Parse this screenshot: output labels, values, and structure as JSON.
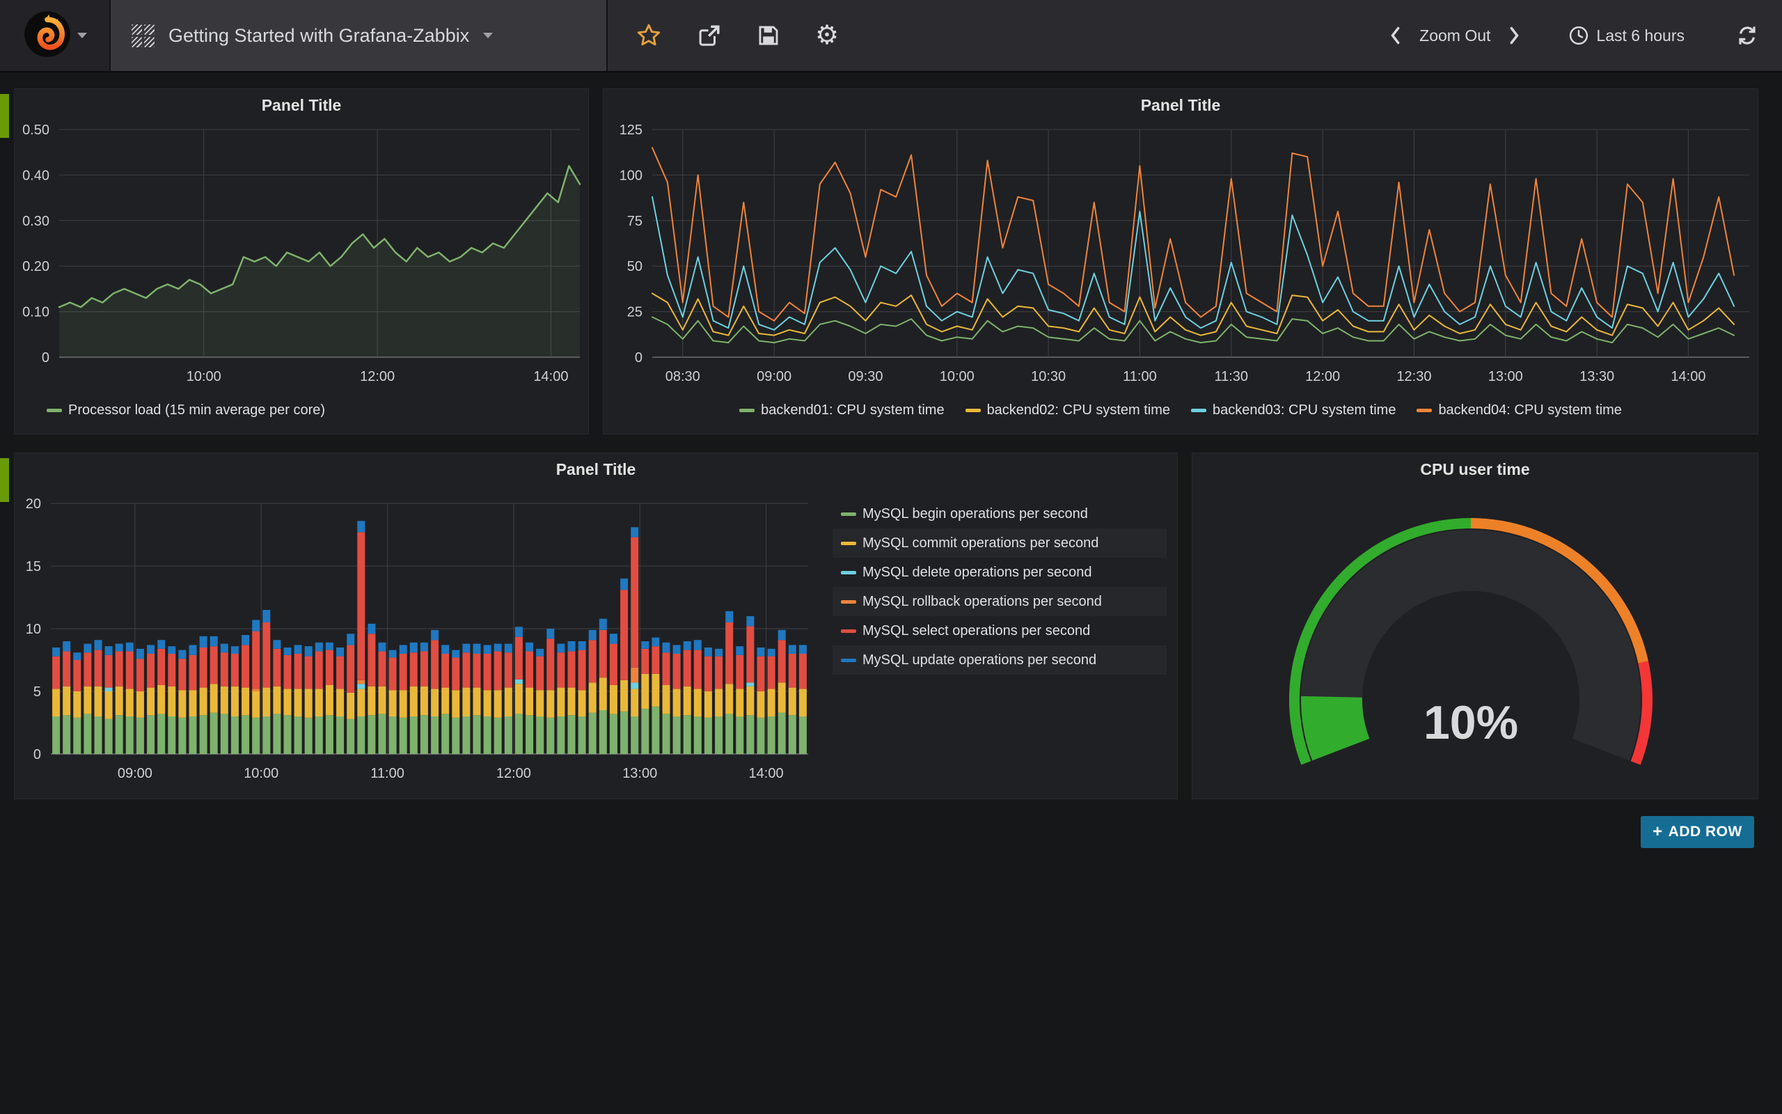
{
  "navbar": {
    "dashboard_title": "Getting Started with Grafana-Zabbix",
    "zoom_out_label": "Zoom Out",
    "time_range_label": "Last 6 hours"
  },
  "add_row": {
    "icon": "+",
    "label": "ADD ROW"
  },
  "colors": {
    "panel_bg": "#1f2023",
    "page_bg": "#161719",
    "navbar_bg": "#2b2b2f",
    "grid": "#404146",
    "axis": "#5a5b60",
    "tick_text": "#d0d0d2",
    "row_indicator": "#6a9b06",
    "add_row_bg": "#166d94",
    "star": "#e7a13d"
  },
  "chart_data": [
    {
      "type": "line",
      "title": "Panel Title",
      "x_range": [
        500,
        860
      ],
      "x_start": 500,
      "x_step": 7.5,
      "x_ticks": [
        {
          "v": 600,
          "label": "10:00"
        },
        {
          "v": 720,
          "label": "12:00"
        },
        {
          "v": 840,
          "label": "14:00"
        }
      ],
      "y_range": [
        0,
        0.5
      ],
      "y_ticks": [
        {
          "v": 0,
          "label": "0"
        },
        {
          "v": 0.1,
          "label": "0.10"
        },
        {
          "v": 0.2,
          "label": "0.20"
        },
        {
          "v": 0.3,
          "label": "0.30"
        },
        {
          "v": 0.4,
          "label": "0.40"
        },
        {
          "v": 0.5,
          "label": "0.50"
        }
      ],
      "legend_position": "bottom-left",
      "series": [
        {
          "name": "Processor load (15 min average per core)",
          "color": "#7EB26D",
          "fill": true,
          "width": 2.5,
          "values": [
            0.11,
            0.12,
            0.11,
            0.13,
            0.12,
            0.14,
            0.15,
            0.14,
            0.13,
            0.15,
            0.16,
            0.15,
            0.17,
            0.16,
            0.14,
            0.15,
            0.16,
            0.22,
            0.21,
            0.22,
            0.2,
            0.23,
            0.22,
            0.21,
            0.23,
            0.2,
            0.22,
            0.25,
            0.27,
            0.24,
            0.26,
            0.23,
            0.21,
            0.24,
            0.22,
            0.23,
            0.21,
            0.22,
            0.24,
            0.23,
            0.25,
            0.24,
            0.27,
            0.3,
            0.33,
            0.36,
            0.34,
            0.42,
            0.38
          ]
        }
      ]
    },
    {
      "type": "line",
      "title": "Panel Title",
      "x_range": [
        500,
        860
      ],
      "x_start": 500,
      "x_step": 5,
      "x_ticks": [
        {
          "v": 510,
          "label": "08:30"
        },
        {
          "v": 540,
          "label": "09:00"
        },
        {
          "v": 570,
          "label": "09:30"
        },
        {
          "v": 600,
          "label": "10:00"
        },
        {
          "v": 630,
          "label": "10:30"
        },
        {
          "v": 660,
          "label": "11:00"
        },
        {
          "v": 690,
          "label": "11:30"
        },
        {
          "v": 720,
          "label": "12:00"
        },
        {
          "v": 750,
          "label": "12:30"
        },
        {
          "v": 780,
          "label": "13:00"
        },
        {
          "v": 810,
          "label": "13:30"
        },
        {
          "v": 840,
          "label": "14:00"
        }
      ],
      "y_range": [
        0,
        125
      ],
      "y_ticks": [
        {
          "v": 0,
          "label": "0"
        },
        {
          "v": 25,
          "label": "25"
        },
        {
          "v": 50,
          "label": "50"
        },
        {
          "v": 75,
          "label": "75"
        },
        {
          "v": 100,
          "label": "100"
        },
        {
          "v": 125,
          "label": "125"
        }
      ],
      "legend_position": "bottom-center",
      "series": [
        {
          "name": "backend01: CPU system time",
          "color": "#7EB26D",
          "width": 2,
          "values": [
            22,
            18,
            10,
            20,
            9,
            8,
            17,
            9,
            8,
            10,
            9,
            18,
            20,
            17,
            13,
            18,
            17,
            21,
            12,
            9,
            11,
            10,
            20,
            14,
            17,
            16,
            11,
            10,
            9,
            16,
            10,
            9,
            20,
            9,
            14,
            10,
            8,
            9,
            18,
            11,
            10,
            9,
            21,
            20,
            13,
            16,
            11,
            9,
            9,
            18,
            10,
            14,
            11,
            9,
            10,
            18,
            12,
            10,
            18,
            11,
            9,
            14,
            10,
            8,
            18,
            16,
            11,
            18,
            10,
            13,
            16,
            12
          ]
        },
        {
          "name": "backend02: CPU system time",
          "color": "#EAB839",
          "width": 2,
          "values": [
            35,
            30,
            15,
            32,
            14,
            12,
            28,
            13,
            12,
            15,
            13,
            30,
            33,
            28,
            20,
            30,
            28,
            34,
            18,
            14,
            17,
            15,
            32,
            22,
            28,
            27,
            17,
            16,
            14,
            27,
            15,
            13,
            33,
            14,
            22,
            15,
            12,
            14,
            30,
            17,
            15,
            13,
            34,
            33,
            20,
            26,
            17,
            14,
            14,
            29,
            15,
            23,
            17,
            13,
            15,
            29,
            18,
            15,
            30,
            17,
            14,
            22,
            15,
            12,
            29,
            27,
            17,
            30,
            15,
            20,
            27,
            18
          ]
        },
        {
          "name": "backend03: CPU system time",
          "color": "#6ED0E0",
          "width": 2,
          "values": [
            88,
            45,
            22,
            55,
            20,
            16,
            50,
            18,
            15,
            22,
            18,
            52,
            60,
            48,
            30,
            50,
            46,
            58,
            28,
            20,
            25,
            22,
            55,
            35,
            48,
            46,
            26,
            24,
            20,
            46,
            22,
            18,
            80,
            20,
            38,
            22,
            16,
            20,
            52,
            25,
            22,
            18,
            78,
            56,
            30,
            44,
            25,
            20,
            20,
            50,
            22,
            40,
            25,
            18,
            22,
            50,
            28,
            22,
            52,
            25,
            20,
            38,
            22,
            16,
            50,
            46,
            25,
            52,
            22,
            32,
            46,
            28
          ]
        },
        {
          "name": "backend04: CPU system time",
          "color": "#EF843C",
          "width": 2,
          "values": [
            115,
            96,
            30,
            100,
            28,
            22,
            85,
            25,
            20,
            30,
            24,
            95,
            107,
            90,
            55,
            92,
            88,
            111,
            45,
            28,
            35,
            30,
            108,
            60,
            88,
            86,
            40,
            35,
            28,
            85,
            30,
            25,
            105,
            27,
            65,
            30,
            22,
            28,
            98,
            35,
            30,
            25,
            112,
            110,
            50,
            80,
            35,
            28,
            28,
            96,
            30,
            70,
            35,
            25,
            30,
            95,
            45,
            30,
            98,
            35,
            28,
            65,
            30,
            22,
            95,
            85,
            35,
            98,
            30,
            55,
            88,
            45
          ]
        }
      ]
    },
    {
      "type": "bar-stacked",
      "title": "Panel Title",
      "x_range": [
        500,
        860
      ],
      "x_start": 502.5,
      "x_step": 5,
      "x_ticks": [
        {
          "v": 540,
          "label": "09:00"
        },
        {
          "v": 600,
          "label": "10:00"
        },
        {
          "v": 660,
          "label": "11:00"
        },
        {
          "v": 720,
          "label": "12:00"
        },
        {
          "v": 780,
          "label": "13:00"
        },
        {
          "v": 840,
          "label": "14:00"
        }
      ],
      "y_range": [
        0,
        20
      ],
      "y_ticks": [
        {
          "v": 0,
          "label": "0"
        },
        {
          "v": 5,
          "label": "5"
        },
        {
          "v": 10,
          "label": "10"
        },
        {
          "v": 15,
          "label": "15"
        },
        {
          "v": 20,
          "label": "20"
        }
      ],
      "legend_position": "right-column",
      "series": [
        {
          "name": "MySQL begin operations per second",
          "color": "#7EB26D",
          "values": [
            3.0,
            3.1,
            2.9,
            3.2,
            3.0,
            2.8,
            3.1,
            3.0,
            2.9,
            3.1,
            3.2,
            3.0,
            2.9,
            3.0,
            3.1,
            3.3,
            3.2,
            3.0,
            3.1,
            2.9,
            3.0,
            3.2,
            3.1,
            3.0,
            2.9,
            3.0,
            3.1,
            3.0,
            2.8,
            3.0,
            3.1,
            3.2,
            3.0,
            2.9,
            3.0,
            3.1,
            3.0,
            3.2,
            2.9,
            3.0,
            3.1,
            3.0,
            2.9,
            3.0,
            3.2,
            3.1,
            3.0,
            2.9,
            3.0,
            3.1,
            3.0,
            3.3,
            3.5,
            3.2,
            3.4,
            3.0,
            3.6,
            3.8,
            3.2,
            3.0,
            3.1,
            3.0,
            2.9,
            3.0,
            3.2,
            3.0,
            3.1,
            2.9,
            3.0,
            3.3,
            3.1,
            3.0
          ]
        },
        {
          "name": "MySQL commit operations per second",
          "color": "#EAB839",
          "values": [
            2.2,
            2.3,
            2.1,
            2.2,
            2.4,
            2.2,
            2.3,
            2.2,
            2.1,
            2.2,
            2.3,
            2.4,
            2.2,
            2.1,
            2.2,
            2.3,
            2.2,
            2.4,
            2.2,
            2.1,
            2.3,
            2.2,
            2.1,
            2.2,
            2.3,
            2.2,
            2.4,
            2.2,
            2.1,
            2.2,
            2.3,
            2.2,
            2.1,
            2.2,
            2.4,
            2.3,
            2.2,
            2.1,
            2.2,
            2.3,
            2.2,
            2.1,
            2.2,
            2.3,
            2.4,
            2.2,
            2.1,
            2.2,
            2.3,
            2.2,
            2.1,
            2.4,
            2.6,
            2.3,
            2.5,
            2.2,
            2.8,
            2.6,
            2.3,
            2.2,
            2.3,
            2.2,
            2.1,
            2.2,
            2.4,
            2.2,
            2.3,
            2.1,
            2.2,
            2.4,
            2.2,
            2.2
          ]
        },
        {
          "name": "MySQL delete operations per second",
          "color": "#6ED0E0",
          "values": [
            0,
            0,
            0,
            0,
            0,
            0.3,
            0,
            0,
            0,
            0,
            0,
            0,
            0,
            0,
            0,
            0,
            0,
            0,
            0,
            0,
            0,
            0,
            0,
            0,
            0,
            0,
            0,
            0,
            0,
            0.4,
            0,
            0,
            0,
            0,
            0,
            0,
            0,
            0,
            0,
            0,
            0,
            0,
            0,
            0,
            0.35,
            0,
            0,
            0,
            0,
            0,
            0,
            0,
            0,
            0,
            0,
            0.5,
            0,
            0,
            0,
            0,
            0,
            0,
            0,
            0,
            0,
            0,
            0.3,
            0,
            0,
            0,
            0,
            0
          ]
        },
        {
          "name": "MySQL rollback operations per second",
          "color": "#EF843C",
          "values": [
            0,
            0,
            0,
            0,
            0,
            0,
            0,
            0,
            0,
            0,
            0,
            0,
            0,
            0,
            0,
            0,
            0,
            0,
            0,
            0.2,
            0,
            0,
            0,
            0,
            0,
            0,
            0,
            0,
            0,
            0.3,
            0,
            0,
            0,
            0,
            0,
            0,
            0,
            0,
            0,
            0,
            0,
            0,
            0,
            0,
            0,
            0,
            0,
            0,
            0,
            0,
            0,
            0,
            0,
            0,
            0,
            1.2,
            0,
            0,
            0,
            0,
            0,
            0,
            0,
            0,
            0,
            0,
            0,
            0,
            0,
            0,
            0,
            0
          ]
        },
        {
          "name": "MySQL select operations per second",
          "color": "#E24D42",
          "values": [
            2.6,
            2.8,
            2.5,
            2.7,
            2.9,
            2.6,
            2.8,
            3.0,
            2.6,
            2.7,
            2.9,
            2.6,
            2.5,
            2.8,
            3.2,
            3.0,
            2.7,
            2.6,
            3.4,
            4.6,
            5.2,
            3.0,
            2.7,
            2.8,
            2.6,
            3.0,
            2.8,
            2.6,
            3.8,
            11.8,
            4.2,
            2.8,
            2.6,
            2.9,
            2.7,
            2.8,
            3.9,
            2.7,
            2.6,
            2.8,
            2.7,
            2.9,
            3.1,
            2.8,
            3.4,
            2.9,
            2.7,
            4.1,
            2.8,
            2.9,
            3.2,
            3.4,
            3.8,
            3.3,
            7.2,
            10.4,
            2.0,
            2.2,
            2.6,
            2.8,
            2.9,
            3.1,
            2.8,
            2.6,
            4.9,
            2.7,
            4.5,
            2.8,
            2.6,
            3.4,
            2.7,
            2.8
          ]
        },
        {
          "name": "MySQL update operations per second",
          "color": "#1F78C1",
          "values": [
            0.7,
            0.8,
            0.6,
            0.7,
            0.8,
            0.7,
            0.6,
            0.7,
            0.8,
            0.7,
            0.7,
            0.6,
            0.7,
            0.8,
            0.9,
            0.8,
            0.7,
            0.6,
            0.8,
            0.9,
            1.0,
            0.7,
            0.6,
            0.7,
            0.8,
            0.7,
            0.6,
            0.7,
            0.9,
            0.9,
            0.8,
            0.7,
            0.6,
            0.7,
            0.8,
            0.7,
            0.8,
            0.7,
            0.6,
            0.7,
            0.8,
            0.7,
            0.6,
            0.7,
            0.8,
            0.7,
            0.6,
            0.8,
            0.7,
            0.8,
            0.7,
            0.8,
            0.9,
            0.8,
            0.9,
            0.8,
            0.6,
            0.7,
            0.8,
            0.7,
            0.7,
            0.8,
            0.7,
            0.6,
            0.9,
            0.7,
            0.8,
            0.7,
            0.6,
            0.8,
            0.7,
            0.7
          ]
        }
      ]
    },
    {
      "type": "gauge",
      "title": "CPU user time",
      "value": 10,
      "value_text": "10%",
      "min": 0,
      "max": 100,
      "value_color": "#32AC2D",
      "thresholds": [
        {
          "to": 50,
          "color": "#32AC2D"
        },
        {
          "to": 85,
          "color": "#ED8128"
        },
        {
          "to": 100,
          "color": "#F53636"
        }
      ]
    }
  ]
}
